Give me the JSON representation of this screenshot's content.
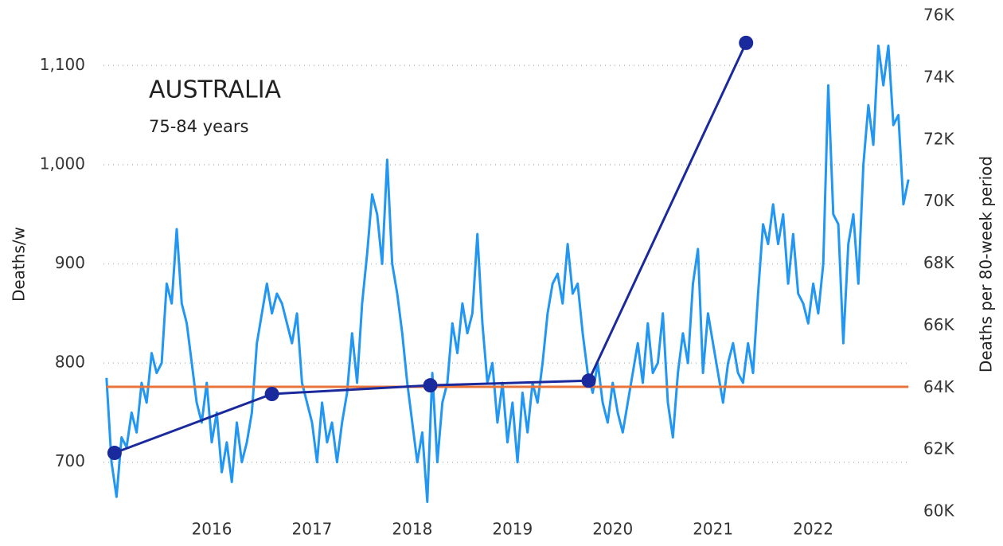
{
  "chart_data": {
    "type": "line",
    "title": "AUSTRALIA",
    "subtitle": "75-84 years",
    "y_label": "Deaths/w",
    "y2_label": "Deaths per 80-week period",
    "xlim": [
      2014.88,
      2022.98
    ],
    "xticks": [
      2016,
      2017,
      2018,
      2019,
      2020,
      2021,
      2022
    ],
    "ylim": [
      650,
      1150
    ],
    "yticks": [
      700,
      800,
      900,
      {
        "value": 1000,
        "label": "1,000"
      },
      {
        "value": 1100,
        "label": "1,100"
      }
    ],
    "y2lim": [
      60000,
      76000
    ],
    "y2ticks": [
      {
        "value": 60000,
        "label": "60K"
      },
      {
        "value": 62000,
        "label": "62K"
      },
      {
        "value": 64000,
        "label": "64K"
      },
      {
        "value": 66000,
        "label": "66K"
      },
      {
        "value": 68000,
        "label": "68K"
      },
      {
        "value": 70000,
        "label": "70K"
      },
      {
        "value": 72000,
        "label": "72K"
      },
      {
        "value": 74000,
        "label": "74K"
      },
      {
        "value": 76000,
        "label": "76K"
      }
    ],
    "grid": true,
    "series": [
      {
        "color": "#2196f3",
        "x": [
          2014.95,
          2015,
          2015.05,
          2015.1,
          2015.15,
          2015.2,
          2015.25,
          2015.3,
          2015.35,
          2015.4,
          2015.45,
          2015.5,
          2015.55,
          2015.6,
          2015.65,
          2015.7,
          2015.75,
          2015.8,
          2015.85,
          2015.9,
          2015.95,
          2016,
          2016.05,
          2016.1,
          2016.15,
          2016.2,
          2016.25,
          2016.3,
          2016.35,
          2016.4,
          2016.45,
          2016.5,
          2016.55,
          2016.6,
          2016.65,
          2016.7,
          2016.75,
          2016.8,
          2016.85,
          2016.9,
          2016.95,
          2017,
          2017.05,
          2017.1,
          2017.15,
          2017.2,
          2017.25,
          2017.3,
          2017.35,
          2017.4,
          2017.45,
          2017.5,
          2017.55,
          2017.6,
          2017.65,
          2017.7,
          2017.75,
          2017.8,
          2017.85,
          2017.9,
          2017.95,
          2018,
          2018.05,
          2018.1,
          2018.15,
          2018.2,
          2018.25,
          2018.3,
          2018.35,
          2018.4,
          2018.45,
          2018.5,
          2018.55,
          2018.6,
          2018.65,
          2018.7,
          2018.75,
          2018.8,
          2018.85,
          2018.9,
          2018.95,
          2019,
          2019.05,
          2019.1,
          2019.15,
          2019.2,
          2019.25,
          2019.3,
          2019.35,
          2019.4,
          2019.45,
          2019.5,
          2019.55,
          2019.6,
          2019.65,
          2019.7,
          2019.75,
          2019.8,
          2019.85,
          2019.9,
          2019.95,
          2020,
          2020.05,
          2020.1,
          2020.15,
          2020.2,
          2020.25,
          2020.3,
          2020.35,
          2020.4,
          2020.45,
          2020.5,
          2020.55,
          2020.6,
          2020.65,
          2020.7,
          2020.75,
          2020.8,
          2020.85,
          2020.9,
          2020.95,
          2021,
          2021.05,
          2021.1,
          2021.15,
          2021.2,
          2021.25,
          2021.3,
          2021.35,
          2021.4,
          2021.45,
          2021.5,
          2021.55,
          2021.6,
          2021.65,
          2021.7,
          2021.75,
          2021.8,
          2021.85,
          2021.9,
          2021.95,
          2022,
          2022.05,
          2022.1,
          2022.15,
          2022.2,
          2022.25,
          2022.3,
          2022.35,
          2022.4,
          2022.45,
          2022.5,
          2022.55,
          2022.6,
          2022.65,
          2022.7,
          2022.75,
          2022.8,
          2022.85,
          2022.9,
          2022.95
        ],
        "values": [
          785,
          700,
          665,
          725,
          715,
          750,
          730,
          780,
          760,
          810,
          790,
          800,
          880,
          860,
          935,
          860,
          840,
          800,
          760,
          740,
          780,
          720,
          750,
          690,
          720,
          680,
          740,
          700,
          720,
          750,
          820,
          850,
          880,
          850,
          870,
          860,
          840,
          820,
          850,
          780,
          760,
          740,
          700,
          760,
          720,
          740,
          700,
          740,
          770,
          830,
          780,
          860,
          910,
          970,
          950,
          900,
          1005,
          900,
          870,
          830,
          780,
          740,
          700,
          730,
          660,
          790,
          700,
          760,
          780,
          840,
          810,
          860,
          830,
          850,
          930,
          840,
          780,
          800,
          740,
          780,
          720,
          760,
          700,
          770,
          730,
          780,
          760,
          800,
          850,
          880,
          890,
          860,
          920,
          870,
          880,
          830,
          790,
          770,
          800,
          760,
          740,
          780,
          750,
          730,
          760,
          790,
          820,
          780,
          840,
          790,
          800,
          850,
          760,
          725,
          790,
          830,
          800,
          880,
          915,
          790,
          850,
          820,
          790,
          760,
          800,
          820,
          790,
          780,
          820,
          790,
          870,
          940,
          920,
          960,
          920,
          950,
          880,
          930,
          870,
          860,
          840,
          880,
          850,
          900,
          1080,
          950,
          940,
          820,
          920,
          950,
          880,
          1000,
          1060,
          1020,
          1120,
          1080,
          1120,
          1040,
          1050,
          960,
          985
        ]
      },
      {
        "color": "#e8743b",
        "x": [
          2014.95,
          2022.95
        ],
        "values": [
          776,
          776
        ]
      },
      {
        "color": "#1a2a9c",
        "axis": "y2",
        "markers": true,
        "x": [
          2015.03,
          2016.6,
          2018.18,
          2019.76,
          2021.33
        ],
        "values": [
          61900,
          63800,
          64080,
          64230,
          75130
        ]
      }
    ]
  }
}
